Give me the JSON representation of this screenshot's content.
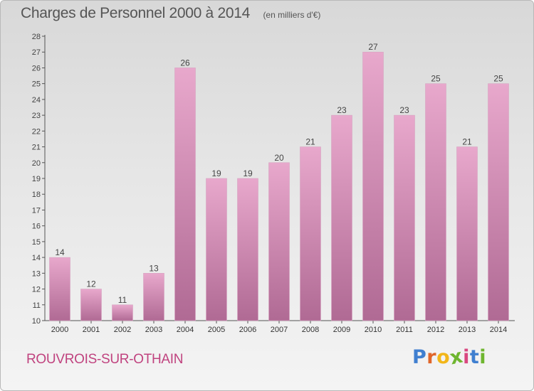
{
  "header": {
    "title": "Charges de Personnel 2000 à 2014",
    "subtitle": "(en milliers d'€)"
  },
  "footer": {
    "commune": "ROUVROIS-SUR-OTHAIN",
    "brand": [
      "P",
      "r",
      "o",
      "x",
      "i",
      "t",
      "i"
    ]
  },
  "colors": {
    "bar_top": "#e8a8cc",
    "bar_bottom": "#b06a94",
    "commune_text": "#c0437f",
    "brand": [
      "#3f7fd0",
      "#e0662a",
      "#f2b619",
      "#6eb52f",
      "#d9477f",
      "#3f7fd0",
      "#6eb52f"
    ]
  },
  "chart_data": {
    "type": "bar",
    "title": "Charges de Personnel 2000 à 2014",
    "subtitle": "(en milliers d'€)",
    "categories": [
      "2000",
      "2001",
      "2002",
      "2003",
      "2004",
      "2005",
      "2006",
      "2007",
      "2008",
      "2009",
      "2010",
      "2011",
      "2012",
      "2013",
      "2014"
    ],
    "values": [
      14,
      12,
      11,
      13,
      26,
      19,
      19,
      20,
      21,
      23,
      27,
      23,
      25,
      21,
      25
    ],
    "ylim": [
      10,
      28
    ],
    "yticks": [
      10,
      11,
      12,
      13,
      14,
      15,
      16,
      17,
      18,
      19,
      20,
      21,
      22,
      23,
      24,
      25,
      26,
      27,
      28
    ],
    "grid": false,
    "legend": "none"
  }
}
